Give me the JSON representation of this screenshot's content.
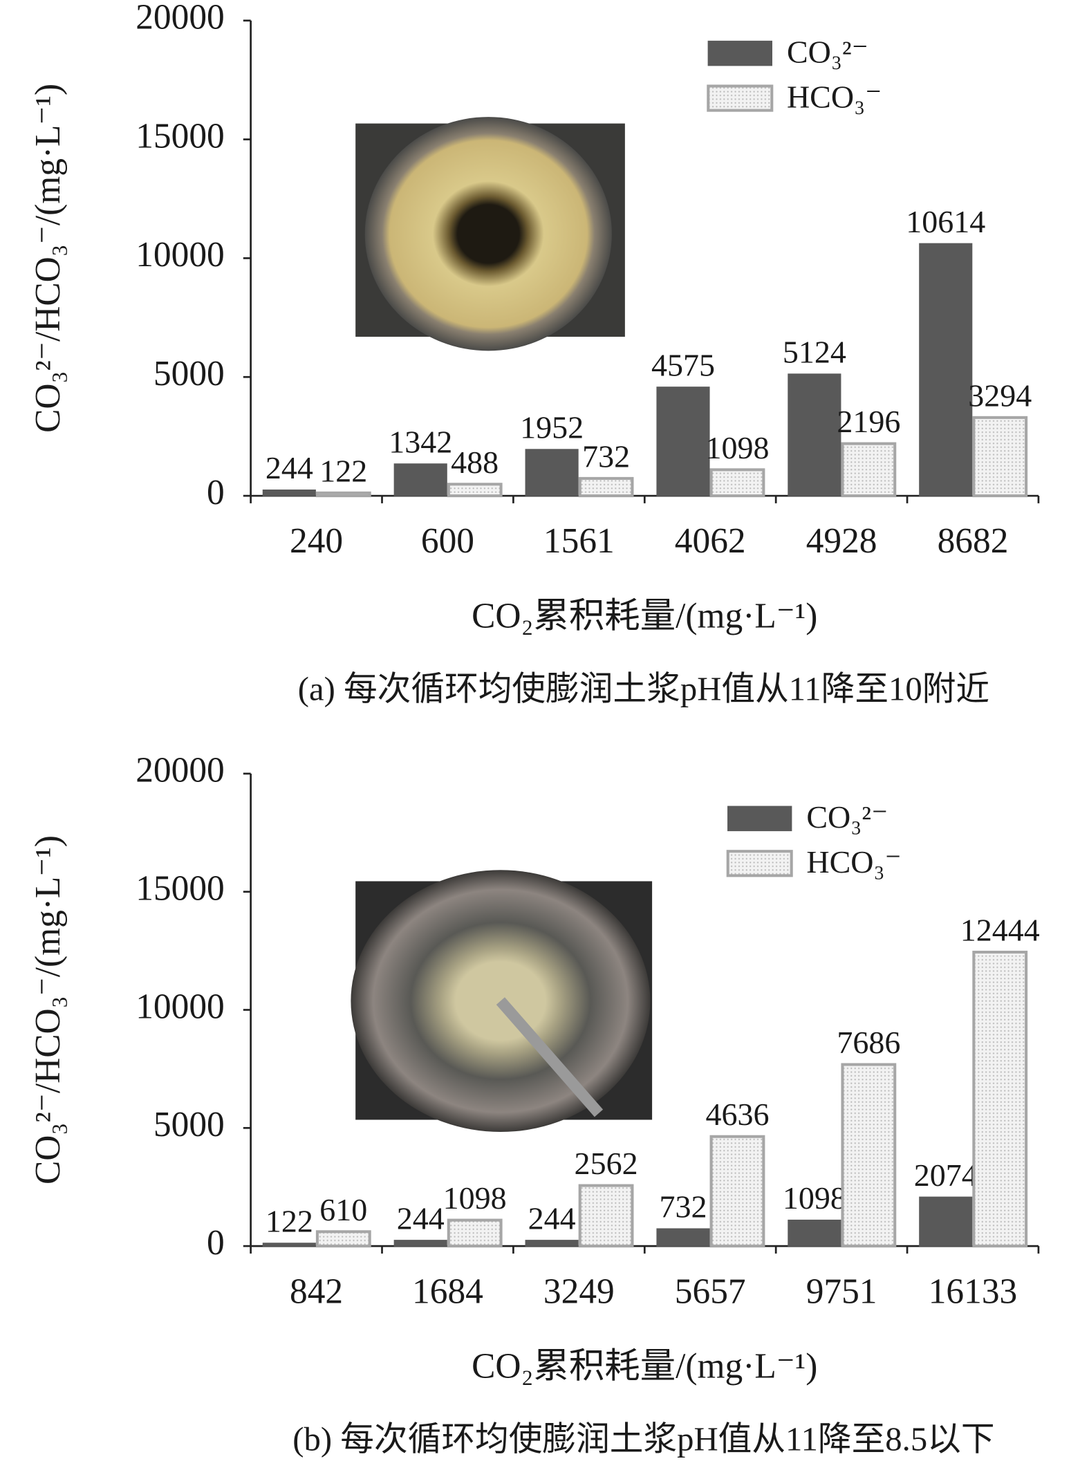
{
  "chart_data": [
    {
      "type": "bar",
      "title": "(a) 每次循环均使膨润土浆pH值从11降至10附近",
      "x_label": "CO₂累积耗量/(mg·L⁻¹)",
      "y_label": "CO₃²⁻/HCO₃⁻/(mg·L⁻¹)",
      "categories": [
        "240",
        "600",
        "1561",
        "4062",
        "4928",
        "8682"
      ],
      "series": [
        {
          "name": "CO₃²⁻",
          "color": "#595959",
          "values": [
            244,
            1342,
            1952,
            4575,
            5124,
            10614
          ]
        },
        {
          "name": "HCO₃⁻",
          "color": "#ececec",
          "values": [
            122,
            488,
            732,
            1098,
            2196,
            3294
          ]
        }
      ],
      "ylim": [
        0,
        20000
      ],
      "yticks": [
        0,
        5000,
        10000,
        15000,
        20000
      ],
      "legend": "upper right"
    },
    {
      "type": "bar",
      "title": "(b) 每次循环均使膨润土浆pH值从11降至8.5以下",
      "x_label": "CO₂累积耗量/(mg·L⁻¹)",
      "y_label": "CO₃²⁻/HCO₃⁻/(mg·L⁻¹)",
      "categories": [
        "842",
        "1684",
        "3249",
        "5657",
        "9751",
        "16133"
      ],
      "series": [
        {
          "name": "CO₃²⁻",
          "color": "#595959",
          "values": [
            122,
            244,
            244,
            732,
            1098,
            2074
          ]
        },
        {
          "name": "HCO₃⁻",
          "color": "#ececec",
          "values": [
            610,
            1098,
            2562,
            4636,
            7686,
            12444
          ]
        }
      ],
      "ylim": [
        0,
        20000
      ],
      "yticks": [
        0,
        5000,
        10000,
        15000,
        20000
      ],
      "legend": "upper right"
    }
  ]
}
